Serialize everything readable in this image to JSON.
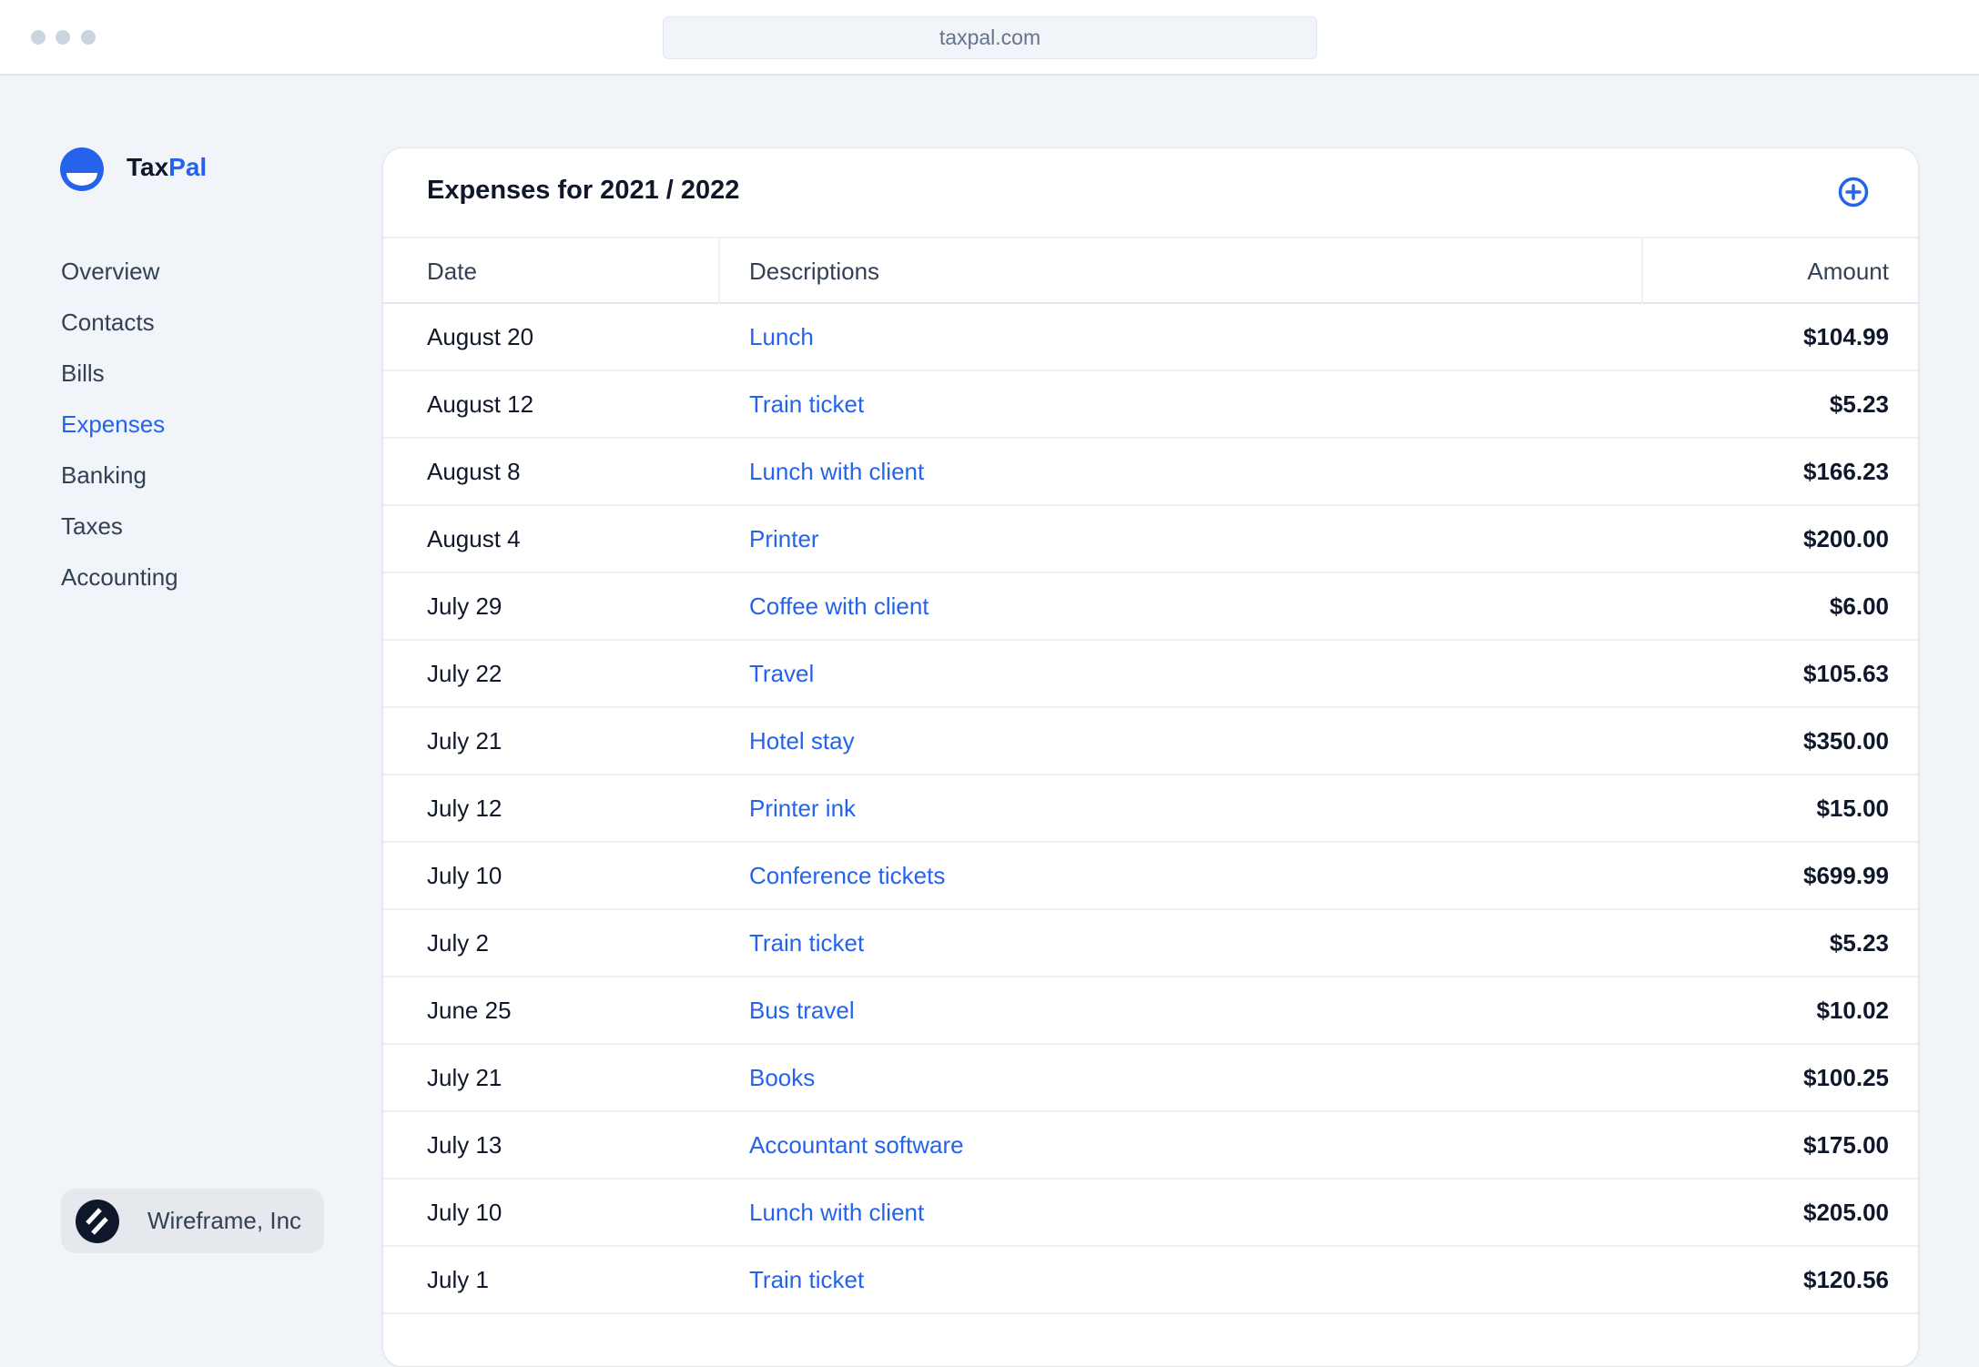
{
  "browser": {
    "url": "taxpal.com"
  },
  "brand": {
    "part1": "Tax",
    "part2": "Pal",
    "accent": "#2563eb"
  },
  "sidebar": {
    "items": [
      {
        "label": "Overview"
      },
      {
        "label": "Contacts"
      },
      {
        "label": "Bills"
      },
      {
        "label": "Expenses",
        "active": true
      },
      {
        "label": "Banking"
      },
      {
        "label": "Taxes"
      },
      {
        "label": "Accounting"
      }
    ]
  },
  "workspace": {
    "name": "Wireframe, Inc"
  },
  "main": {
    "title": "Expenses for 2021 / 2022",
    "add_icon": "plus-circle-icon",
    "columns": [
      "Date",
      "Descriptions",
      "Amount"
    ],
    "rows": [
      [
        "August 20",
        "Lunch",
        "$104.99"
      ],
      [
        "August 12",
        "Train ticket",
        "$5.23"
      ],
      [
        "August 8",
        "Lunch with client",
        "$166.23"
      ],
      [
        "August 4",
        "Printer",
        "$200.00"
      ],
      [
        "July 29",
        "Coffee with client",
        "$6.00"
      ],
      [
        "July 22",
        "Travel",
        "$105.63"
      ],
      [
        "July 21",
        "Hotel stay",
        "$350.00"
      ],
      [
        "July 12",
        "Printer ink",
        "$15.00"
      ],
      [
        "July 10",
        "Conference tickets",
        "$699.99"
      ],
      [
        "July 2",
        "Train ticket",
        "$5.23"
      ],
      [
        "June 25",
        "Bus travel",
        "$10.02"
      ],
      [
        "July 21",
        "Books",
        "$100.25"
      ],
      [
        "July 13",
        "Accountant software",
        "$175.00"
      ],
      [
        "July 10",
        "Lunch with client",
        "$205.00"
      ],
      [
        "July 1",
        "Train ticket",
        "$120.56"
      ]
    ]
  }
}
